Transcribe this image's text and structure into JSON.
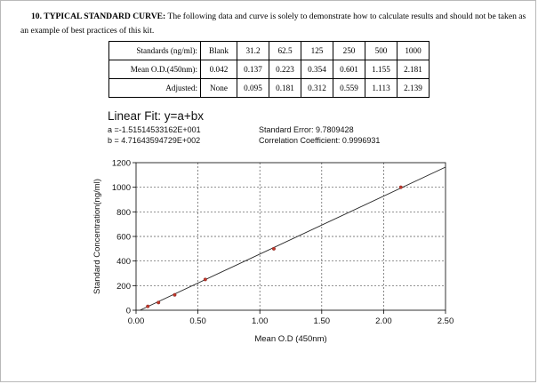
{
  "section": {
    "heading": "10. TYPICAL STANDARD CURVE:",
    "text": " The following data and curve is solely to demonstrate how to calculate results and should not be taken as an example of best practices of this kit."
  },
  "table": {
    "row_labels": [
      "Standards (ng/ml):",
      "Mean O.D.(450nm):",
      "Adjusted:"
    ],
    "standards": [
      "Blank",
      "31.2",
      "62.5",
      "125",
      "250",
      "500",
      "1000"
    ],
    "mean_od": [
      "0.042",
      "0.137",
      "0.223",
      "0.354",
      "0.601",
      "1.155",
      "2.181"
    ],
    "adjusted": [
      "None",
      "0.095",
      "0.181",
      "0.312",
      "0.559",
      "1.113",
      "2.139"
    ]
  },
  "fit": {
    "title": "Linear Fit: y=a+bx",
    "a_text": "a =-1.51514533162E+001",
    "b_text": "b = 4.71643594729E+002",
    "std_error_text": "Standard Error: 9.7809428",
    "corr_text": "Correlation Coefficient: 0.9996931"
  },
  "chart_data": {
    "type": "scatter",
    "title": "Linear Fit: y=a+bx",
    "xlabel": "Mean O.D (450nm)",
    "ylabel": "Standard Concentration(ng/ml)",
    "xlim": [
      0,
      2.5
    ],
    "ylim": [
      0,
      1200
    ],
    "x_ticks": [
      "0.00",
      "0.50",
      "1.00",
      "1.50",
      "2.00",
      "2.50"
    ],
    "y_ticks": [
      "0",
      "200",
      "400",
      "600",
      "800",
      "1000",
      "1200"
    ],
    "grid": true,
    "points": [
      {
        "x": 0.095,
        "y": 31.2
      },
      {
        "x": 0.181,
        "y": 62.5
      },
      {
        "x": 0.312,
        "y": 125
      },
      {
        "x": 0.559,
        "y": 250
      },
      {
        "x": 1.113,
        "y": 500
      },
      {
        "x": 2.139,
        "y": 1000
      }
    ],
    "fit_line": {
      "a": -15.1514533162,
      "b": 471.643594729
    },
    "colors": {
      "line": "#222222",
      "marker": "#c0392b",
      "grid": "#555555"
    }
  }
}
